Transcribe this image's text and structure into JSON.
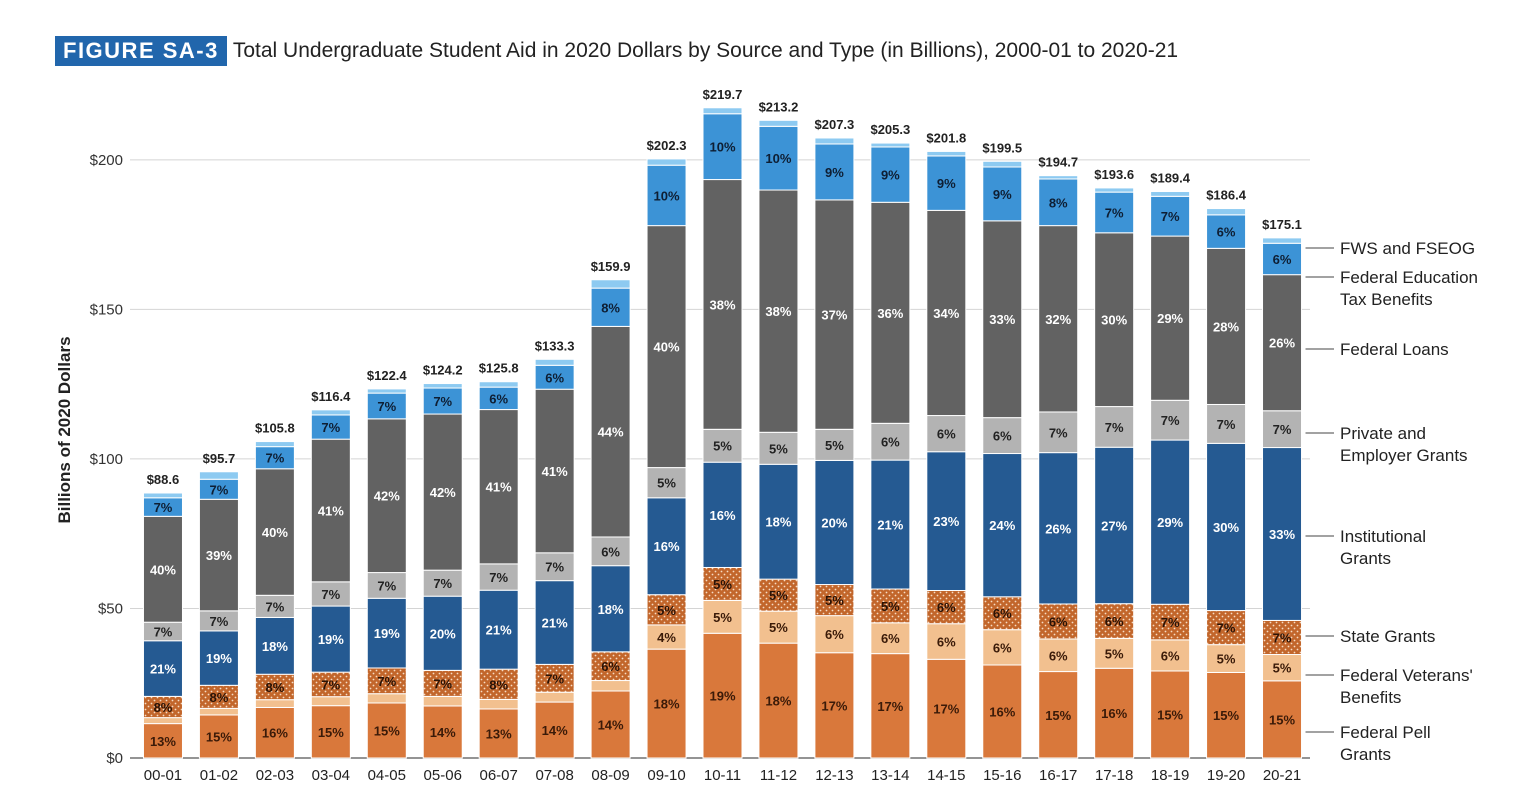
{
  "figure": {
    "label": "FIGURE SA-3",
    "title": "Total Undergraduate Student Aid in 2020 Dollars by Source and Type (in Billions), 2000-01 to 2020-21"
  },
  "colors": {
    "pell": "#d9783b",
    "veterans": "#f2c08f",
    "state": "#c2662b",
    "institutional": "#255a92",
    "private": "#b3b3b3",
    "loans": "#626262",
    "tax": "#3c93d6",
    "fws": "#8dcaf1"
  },
  "chart_data": {
    "type": "bar",
    "stacked": true,
    "title": "Total Undergraduate Student Aid in 2020 Dollars by Source and Type (in Billions), 2000-01 to 2020-21",
    "ylabel": "Billions of 2020 Dollars",
    "xlabel": "",
    "ylim": [
      0,
      220
    ],
    "yticks": [
      0,
      50,
      100,
      150,
      200
    ],
    "ytick_labels": [
      "$0",
      "$50",
      "$100",
      "$150",
      "$200"
    ],
    "categories": [
      "00-01",
      "01-02",
      "02-03",
      "03-04",
      "04-05",
      "05-06",
      "06-07",
      "07-08",
      "08-09",
      "09-10",
      "10-11",
      "11-12",
      "12-13",
      "13-14",
      "14-15",
      "15-16",
      "16-17",
      "17-18",
      "18-19",
      "19-20",
      "20-21"
    ],
    "totals": [
      88.6,
      95.7,
      105.8,
      116.4,
      122.4,
      124.2,
      125.8,
      133.3,
      159.9,
      202.3,
      219.7,
      213.2,
      207.3,
      205.3,
      201.8,
      199.5,
      194.7,
      193.6,
      189.4,
      186.4,
      175.1
    ],
    "total_labels": [
      "$88.6",
      "$95.7",
      "$105.8",
      "$116.4",
      "$122.4",
      "$124.2",
      "$125.8",
      "$133.3",
      "$159.9",
      "$202.3",
      "$219.7",
      "$213.2",
      "$207.3",
      "$205.3",
      "$201.8",
      "$199.5",
      "$194.7",
      "$193.6",
      "$189.4",
      "$186.4",
      "$175.1"
    ],
    "series": [
      {
        "key": "pell",
        "name": "Federal Pell Grants",
        "colorKey": "pell",
        "pattern": false,
        "text": "#3a1a08",
        "values": [
          11.5,
          14.4,
          16.9,
          17.5,
          18.4,
          17.4,
          16.4,
          18.7,
          22.4,
          36.4,
          41.7,
          38.4,
          35.2,
          34.9,
          33.0,
          31.1,
          28.9,
          30.0,
          29.1,
          28.6,
          25.8
        ],
        "labels": [
          "13%",
          "15%",
          "16%",
          "15%",
          "15%",
          "14%",
          "13%",
          "14%",
          "14%",
          "18%",
          "19%",
          "18%",
          "17%",
          "17%",
          "17%",
          "16%",
          "15%",
          "16%",
          "15%",
          "15%",
          "15%"
        ]
      },
      {
        "key": "veterans",
        "name": "Federal Veterans' Benefits",
        "colorKey": "veterans",
        "pattern": false,
        "text": "#3a1a08",
        "values": [
          2.0,
          2.2,
          2.6,
          3.0,
          3.1,
          3.2,
          3.2,
          3.3,
          3.5,
          8.1,
          11.0,
          10.7,
          12.4,
          10.3,
          11.9,
          11.8,
          10.9,
          10.0,
          10.4,
          9.3,
          8.8
        ],
        "labels": [
          "",
          "",
          "",
          "",
          "",
          "",
          "",
          "",
          "",
          "4%",
          "5%",
          "5%",
          "6%",
          "6%",
          "6%",
          "6%",
          "6%",
          "5%",
          "6%",
          "5%",
          "5%"
        ]
      },
      {
        "key": "state",
        "name": "State Grants",
        "colorKey": "state",
        "pattern": true,
        "text": "#2a1205",
        "values": [
          7.1,
          7.7,
          8.5,
          8.2,
          8.6,
          8.7,
          10.1,
          9.3,
          9.6,
          10.1,
          11.0,
          10.7,
          10.4,
          11.3,
          11.1,
          11.0,
          11.7,
          11.6,
          11.9,
          11.4,
          11.4
        ],
        "labels": [
          "8%",
          "8%",
          "8%",
          "7%",
          "7%",
          "7%",
          "8%",
          "7%",
          "6%",
          "5%",
          "5%",
          "5%",
          "5%",
          "5%",
          "6%",
          "6%",
          "6%",
          "6%",
          "7%",
          "7%",
          "7%"
        ]
      },
      {
        "key": "institutional",
        "name": "Institutional Grants",
        "colorKey": "institutional",
        "pattern": false,
        "text": "#ffffff",
        "values": [
          18.6,
          18.2,
          19.0,
          22.1,
          23.3,
          24.8,
          26.4,
          28.0,
          28.8,
          32.4,
          35.2,
          38.4,
          41.5,
          43.1,
          46.4,
          47.9,
          50.6,
          52.3,
          54.9,
          55.9,
          57.8
        ],
        "labels": [
          "21%",
          "19%",
          "18%",
          "19%",
          "19%",
          "20%",
          "21%",
          "21%",
          "18%",
          "16%",
          "16%",
          "18%",
          "20%",
          "21%",
          "23%",
          "24%",
          "26%",
          "27%",
          "29%",
          "30%",
          "33%"
        ]
      },
      {
        "key": "private",
        "name": "Private and Employer Grants",
        "colorKey": "private",
        "pattern": false,
        "text": "#222222",
        "values": [
          6.2,
          6.7,
          7.4,
          8.1,
          8.6,
          8.7,
          8.8,
          9.3,
          9.6,
          10.1,
          11.0,
          10.7,
          10.4,
          12.3,
          12.1,
          12.0,
          13.6,
          13.6,
          13.3,
          13.0,
          12.3
        ],
        "labels": [
          "7%",
          "7%",
          "7%",
          "7%",
          "7%",
          "7%",
          "7%",
          "7%",
          "6%",
          "5%",
          "5%",
          "5%",
          "5%",
          "6%",
          "6%",
          "6%",
          "7%",
          "7%",
          "7%",
          "7%",
          "7%"
        ]
      },
      {
        "key": "loans",
        "name": "Federal Loans",
        "colorKey": "loans",
        "pattern": false,
        "text": "#ffffff",
        "values": [
          35.4,
          37.3,
          42.3,
          47.7,
          51.4,
          52.2,
          51.6,
          54.7,
          70.4,
          80.9,
          83.5,
          81.0,
          76.7,
          73.9,
          68.6,
          65.8,
          62.3,
          58.1,
          54.9,
          52.2,
          45.5
        ],
        "labels": [
          "40%",
          "39%",
          "40%",
          "41%",
          "42%",
          "42%",
          "41%",
          "41%",
          "44%",
          "40%",
          "38%",
          "38%",
          "37%",
          "36%",
          "34%",
          "33%",
          "32%",
          "30%",
          "29%",
          "28%",
          "26%"
        ]
      },
      {
        "key": "tax",
        "name": "Federal Education Tax Benefits",
        "colorKey": "tax",
        "pattern": false,
        "text": "#0e1e33",
        "values": [
          6.2,
          6.7,
          7.4,
          8.1,
          8.6,
          8.7,
          7.5,
          8.0,
          12.8,
          20.2,
          22.0,
          21.3,
          18.7,
          18.5,
          18.2,
          18.0,
          15.6,
          13.6,
          13.3,
          11.2,
          10.5
        ],
        "labels": [
          "7%",
          "7%",
          "7%",
          "7%",
          "7%",
          "7%",
          "6%",
          "6%",
          "8%",
          "10%",
          "10%",
          "10%",
          "9%",
          "9%",
          "9%",
          "9%",
          "8%",
          "7%",
          "7%",
          "6%",
          "6%"
        ]
      },
      {
        "key": "fws",
        "name": "FWS and FSEOG",
        "colorKey": "fws",
        "pattern": false,
        "text": "#222222",
        "values": [
          1.6,
          2.5,
          1.7,
          1.7,
          1.4,
          1.5,
          1.8,
          2.0,
          2.8,
          2.1,
          2.0,
          2.0,
          2.0,
          1.3,
          1.5,
          1.9,
          1.1,
          1.4,
          1.6,
          2.1,
          1.8
        ],
        "labels": [
          "",
          "",
          "",
          "",
          "",
          "",
          "",
          "",
          "",
          "",
          "",
          "",
          "",
          "",
          "",
          "",
          "",
          "",
          "",
          "",
          ""
        ]
      }
    ],
    "legend_position": "right",
    "legend": [
      {
        "seriesKey": "fws",
        "lines": [
          "FWS and FSEOG"
        ]
      },
      {
        "seriesKey": "tax",
        "lines": [
          "Federal Education",
          "Tax Benefits"
        ]
      },
      {
        "seriesKey": "loans",
        "lines": [
          "Federal Loans"
        ]
      },
      {
        "seriesKey": "private",
        "lines": [
          "Private and",
          "Employer Grants"
        ]
      },
      {
        "seriesKey": "institutional",
        "lines": [
          "Institutional",
          "Grants"
        ]
      },
      {
        "seriesKey": "state",
        "lines": [
          "State Grants"
        ]
      },
      {
        "seriesKey": "veterans",
        "lines": [
          "Federal Veterans'",
          "Benefits"
        ]
      },
      {
        "seriesKey": "pell",
        "lines": [
          "Federal Pell",
          "Grants"
        ]
      }
    ]
  }
}
